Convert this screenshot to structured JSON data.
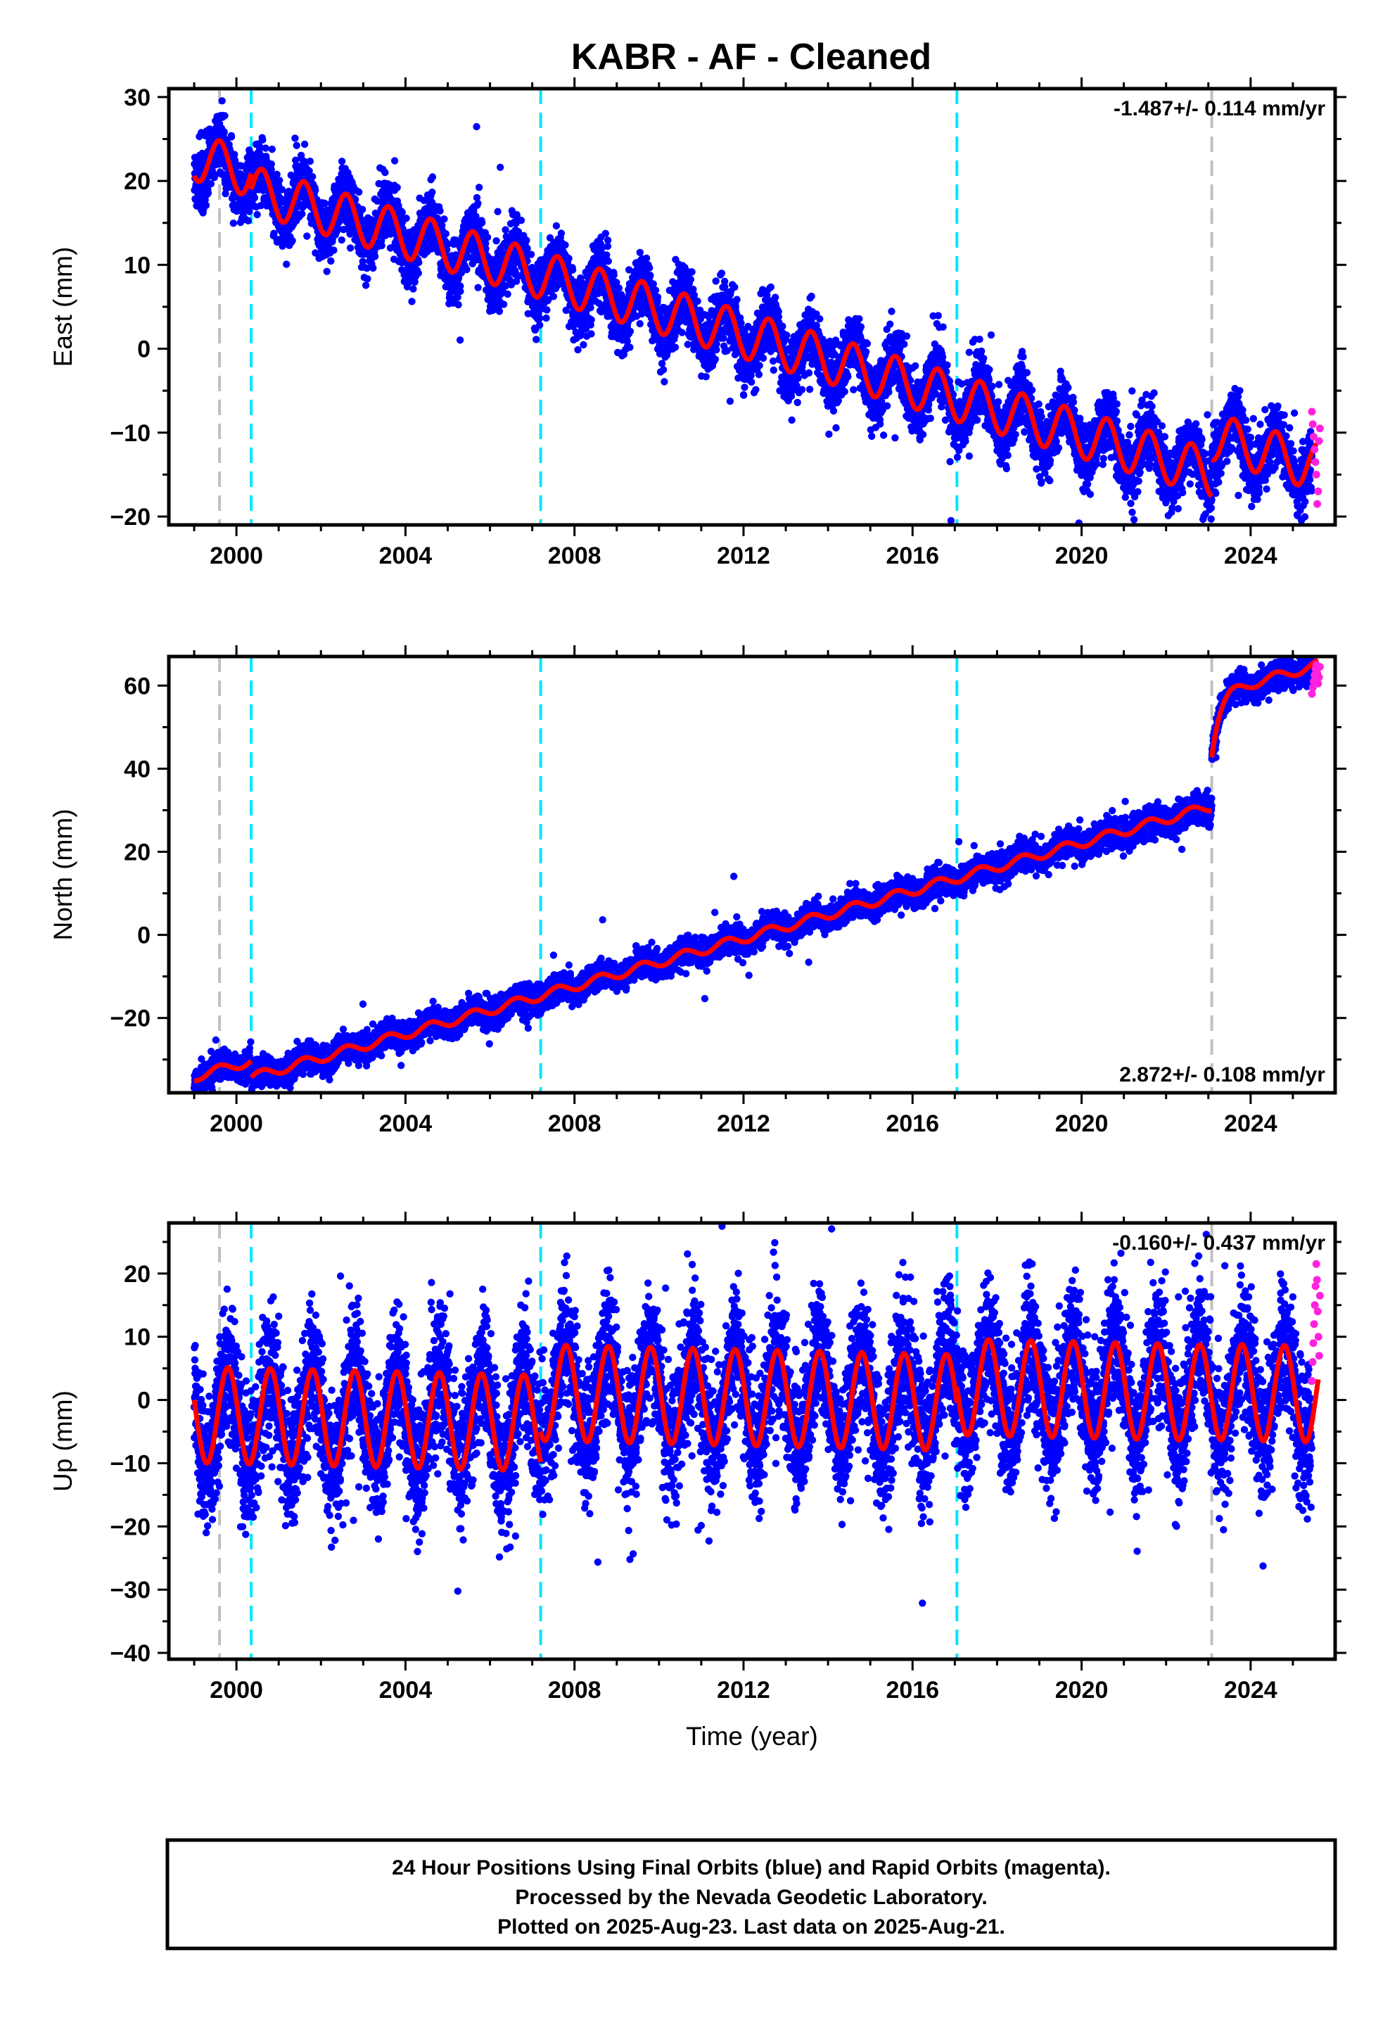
{
  "title": "KABR  - AF - Cleaned",
  "footer": {
    "line1": "24 Hour Positions Using Final Orbits (blue) and Rapid Orbits (magenta).",
    "line2": "Processed by the Nevada Geodetic Laboratory.",
    "line3": "Plotted on 2025-Aug-23. Last data on 2025-Aug-21."
  },
  "colors": {
    "final_orbits": "#0000ff",
    "rapid_orbits": "#ff22dd",
    "model": "#ff0000",
    "antenna_change": "#00e5ff",
    "equipment_change": "#c0c0c0"
  },
  "chart_data": [
    {
      "type": "scatter",
      "component": "East",
      "ylabel": "East (mm)",
      "xlabel": "",
      "xlim": [
        1998.4,
        2026.0
      ],
      "ylim": [
        -21,
        31
      ],
      "x_ticks": [
        2000,
        2004,
        2008,
        2012,
        2016,
        2020,
        2024
      ],
      "x_tick_labels": [
        "2000",
        "2004",
        "2008",
        "2012",
        "2016",
        "2020",
        "2024"
      ],
      "y_ticks": [
        -20,
        -10,
        0,
        10,
        20,
        30
      ],
      "y_tick_labels": [
        "−20",
        "−10",
        "0",
        "10",
        "20",
        "30"
      ],
      "rate_text": "-1.487+/- 0.114 mm/yr",
      "rate_position": "top-right",
      "grid": false,
      "model": {
        "segments": [
          {
            "start": 1999.0,
            "end": 2000.35,
            "offset": 21.4
          },
          {
            "start": 2000.35,
            "end": 2023.08,
            "offset": 19.5
          },
          {
            "start": 2023.08,
            "end": 2025.6,
            "offset": 23.9
          }
        ],
        "rate_mm_per_yr": -1.487,
        "annual_amplitude_mm": 2.8,
        "annual_phase_year": 0.35
      },
      "final_orbits": {
        "start": 1999.0,
        "end": 2025.45,
        "scatter_mm": 1.8
      },
      "rapid_orbits": {
        "start": 2025.45,
        "end": 2025.64,
        "values": [
          -7.5,
          -9.0,
          -10.5,
          -12.0,
          -13.5,
          -15.0,
          -18.5,
          -17.0,
          -11.0,
          -9.5
        ]
      },
      "breaks_antenna": [
        2000.35,
        2007.2,
        2017.05
      ],
      "breaks_equipment": [
        1999.6,
        2023.08
      ]
    },
    {
      "type": "scatter",
      "component": "North",
      "ylabel": "North (mm)",
      "xlabel": "",
      "xlim": [
        1998.4,
        2026.0
      ],
      "ylim": [
        -38,
        67
      ],
      "x_ticks": [
        2000,
        2004,
        2008,
        2012,
        2016,
        2020,
        2024
      ],
      "x_tick_labels": [
        "2000",
        "2004",
        "2008",
        "2012",
        "2016",
        "2020",
        "2024"
      ],
      "y_ticks": [
        -20,
        0,
        20,
        40,
        60
      ],
      "y_tick_labels": [
        "−20",
        "0",
        "20",
        "40",
        "60"
      ],
      "rate_text": "2.872+/- 0.108 mm/yr",
      "rate_position": "bottom-right",
      "grid": false,
      "model": {
        "segments": [
          {
            "start": 1999.0,
            "end": 2000.35,
            "offset": -31.3
          },
          {
            "start": 2000.35,
            "end": 2023.08,
            "offset": -35.3
          },
          {
            "start": 2023.08,
            "end": 2025.6,
            "offset": -22.5
          }
        ],
        "rate_mm_per_yr": 2.872,
        "annual_amplitude_mm": 1.1,
        "annual_phase_year": 0.35,
        "postseismic": {
          "start": 2023.08,
          "amplitude_mm": 14.0,
          "tau_yr": 0.18
        }
      },
      "final_orbits": {
        "start": 1999.0,
        "end": 2025.45,
        "scatter_mm": 1.6
      },
      "rapid_orbits": {
        "start": 2025.45,
        "end": 2025.64,
        "values": [
          58.0,
          59.5,
          61.0,
          62.5,
          64.0,
          65.0,
          63.0,
          60.5,
          62.0,
          64.5
        ]
      },
      "breaks_antenna": [
        2000.35,
        2007.2,
        2017.05
      ],
      "breaks_equipment": [
        1999.6,
        2023.08
      ]
    },
    {
      "type": "scatter",
      "component": "Up",
      "ylabel": "Up (mm)",
      "xlabel": "Time (year)",
      "xlim": [
        1998.4,
        2026.0
      ],
      "ylim": [
        -41,
        28
      ],
      "x_ticks": [
        2000,
        2004,
        2008,
        2012,
        2016,
        2020,
        2024
      ],
      "x_tick_labels": [
        "2000",
        "2004",
        "2008",
        "2012",
        "2016",
        "2020",
        "2024"
      ],
      "y_ticks": [
        -40,
        -30,
        -20,
        -10,
        0,
        10,
        20
      ],
      "y_tick_labels": [
        "−40",
        "−30",
        "−20",
        "−10",
        "0",
        "10",
        "20"
      ],
      "rate_text": "-0.160+/- 0.437 mm/yr",
      "rate_position": "top-right",
      "grid": false,
      "model": {
        "segments": [
          {
            "start": 1999.0,
            "end": 2000.35,
            "offset": -2.5
          },
          {
            "start": 2000.35,
            "end": 2007.2,
            "offset": -2.5
          },
          {
            "start": 2007.2,
            "end": 2017.05,
            "offset": 2.3
          },
          {
            "start": 2017.05,
            "end": 2023.08,
            "offset": 4.8
          },
          {
            "start": 2023.08,
            "end": 2025.6,
            "offset": 5.0
          }
        ],
        "rate_mm_per_yr": -0.16,
        "annual_amplitude_mm": 7.6,
        "annual_phase_year": 0.55
      },
      "final_orbits": {
        "start": 1999.0,
        "end": 2025.45,
        "scatter_mm": 5.2
      },
      "rapid_orbits": {
        "start": 2025.45,
        "end": 2025.64,
        "values": [
          3.0,
          6.0,
          9.0,
          12.0,
          15.0,
          18.0,
          21.5,
          19.0,
          14.0,
          10.0,
          7.0,
          16.5
        ]
      },
      "breaks_antenna": [
        2000.35,
        2007.2,
        2017.05
      ],
      "breaks_equipment": [
        1999.6,
        2023.08
      ]
    }
  ]
}
